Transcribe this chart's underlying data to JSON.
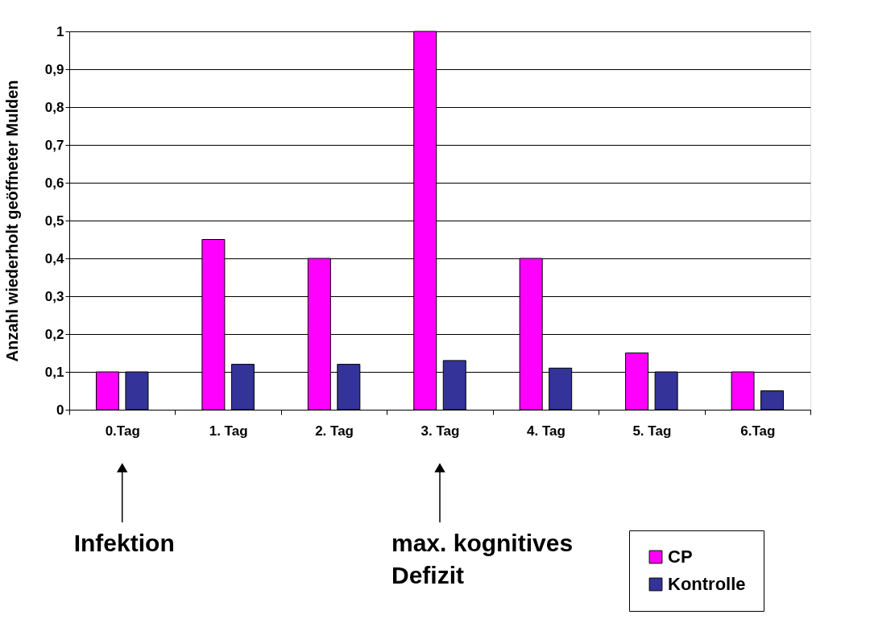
{
  "chart_data": {
    "type": "bar",
    "ylabel": "Anzahl wiederholt geöffneter Mulden",
    "categories": [
      "0.Tag",
      "1. Tag",
      "2. Tag",
      "3. Tag",
      "4. Tag",
      "5. Tag",
      "6.Tag"
    ],
    "series": [
      {
        "name": "CP",
        "color": "#ff00ff",
        "values": [
          0.1,
          0.45,
          0.4,
          1.0,
          0.4,
          0.15,
          0.1
        ]
      },
      {
        "name": "Kontrolle",
        "color": "#333399",
        "values": [
          0.1,
          0.12,
          0.12,
          0.13,
          0.11,
          0.1,
          0.05
        ]
      }
    ],
    "ylim": [
      0,
      1
    ],
    "yticks": [
      0,
      {
        "value": 0.1,
        "label": "0,1"
      },
      {
        "value": 0.2,
        "label": "0,2"
      },
      {
        "value": 0.3,
        "label": "0,3"
      },
      {
        "value": 0.4,
        "label": "0,4"
      },
      {
        "value": 0.5,
        "label": "0,5"
      },
      {
        "value": 0.6,
        "label": "0,6"
      },
      {
        "value": 0.7,
        "label": "0,7"
      },
      {
        "value": 0.8,
        "label": "0,8"
      },
      {
        "value": 0.9,
        "label": "0,9"
      },
      1
    ],
    "grid": "y",
    "legend": "bottom right",
    "annotations": [
      "Infektion",
      "max. kognitives\nDefizit"
    ]
  }
}
